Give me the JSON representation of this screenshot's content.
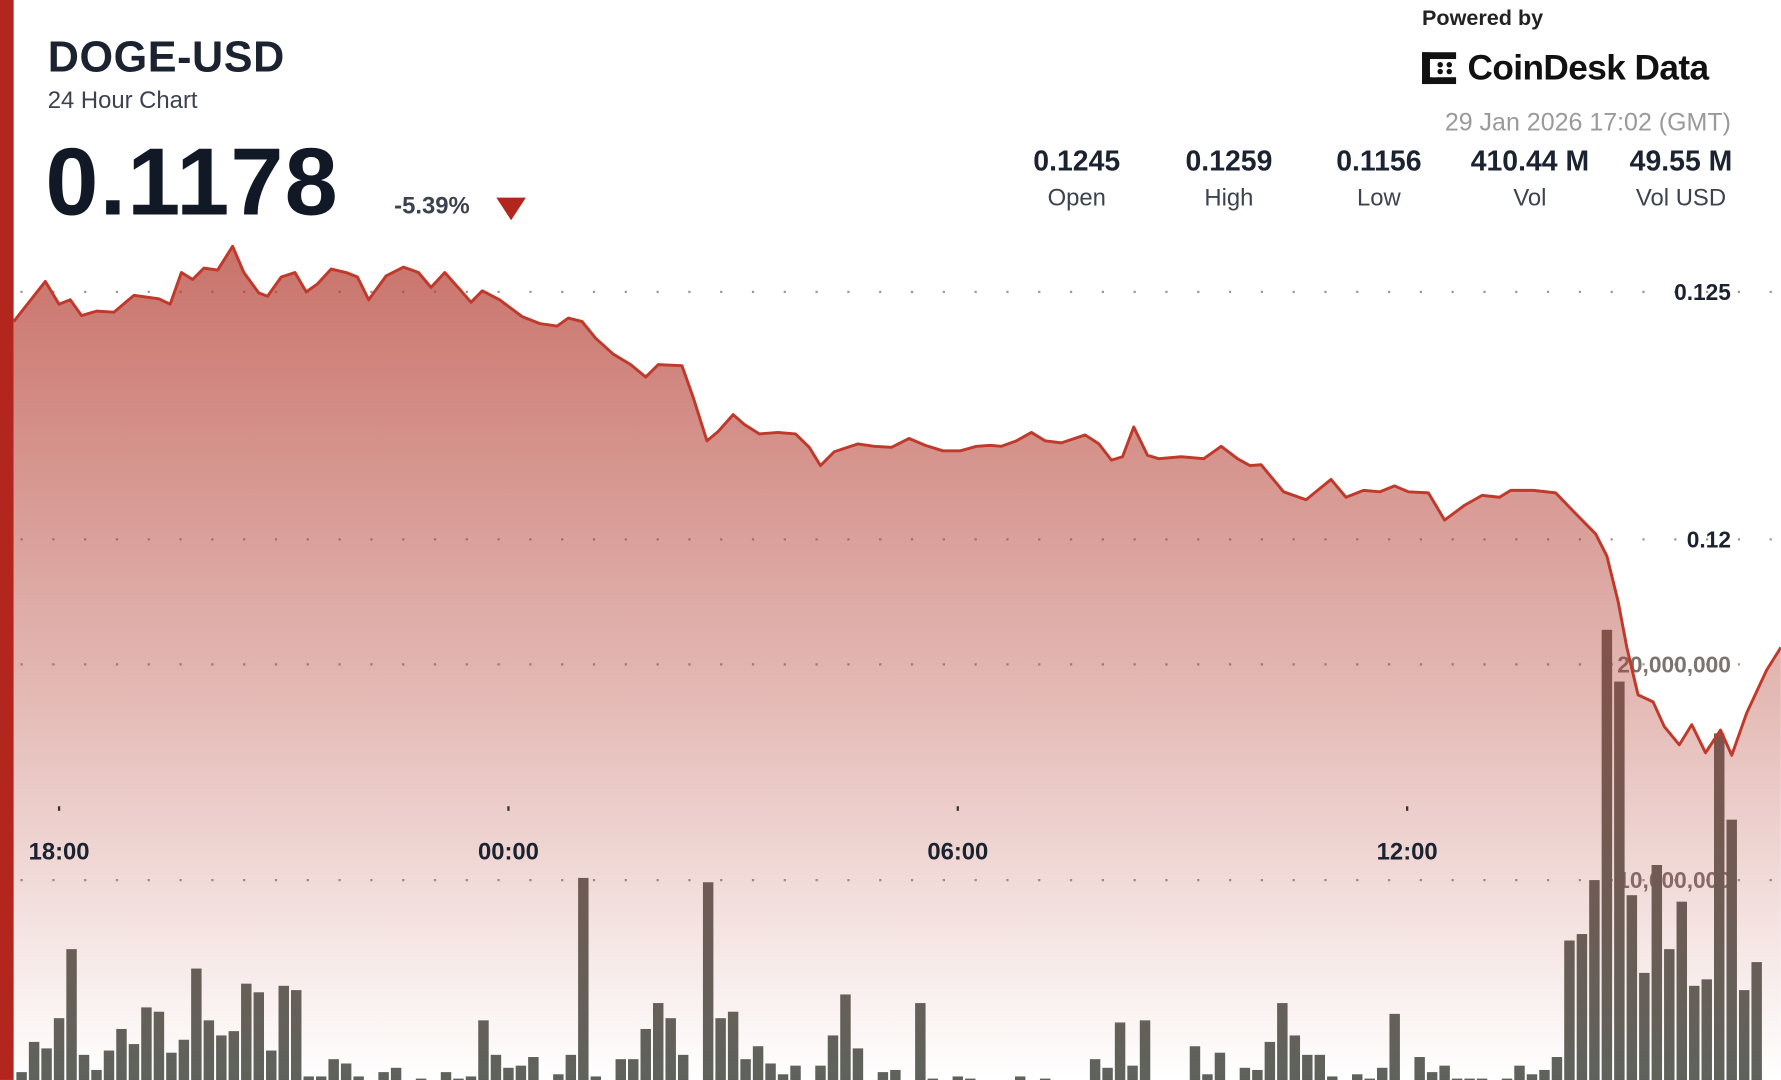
{
  "header": {
    "symbol": "DOGE-USD",
    "subtitle": "24 Hour Chart",
    "price": "0.1178",
    "change": "-5.39%",
    "change_direction": "down",
    "powered_by": "Powered by",
    "brand": "CoinDesk Data",
    "timestamp": "29 Jan 2026 17:02 (GMT)"
  },
  "stats": [
    {
      "value": "0.1245",
      "label": "Open"
    },
    {
      "value": "0.1259",
      "label": "High"
    },
    {
      "value": "0.1156",
      "label": "Low"
    },
    {
      "value": "410.44 M",
      "label": "Vol"
    },
    {
      "value": "49.55 M",
      "label": "Vol USD"
    }
  ],
  "colors": {
    "accent": "#b3261e",
    "line": "#c0392b",
    "area": "#b43c30",
    "volume_bar": "#5f625c"
  },
  "chart_data": {
    "type": "area",
    "grid": true,
    "price_axis": {
      "ticks": [
        0.125,
        0.12
      ],
      "tick_labels": [
        "0.125",
        "0.12"
      ]
    },
    "volume_axis": {
      "ticks": [
        20000000,
        10000000
      ],
      "tick_labels": [
        "20,000,000",
        "10,000,000"
      ]
    },
    "x_axis": {
      "ticks": [
        "2026-01-28T18:00",
        "2026-01-29T00:00",
        "2026-01-29T06:00",
        "2026-01-29T12:00"
      ],
      "tick_labels": [
        "18:00",
        "00:00",
        "06:00",
        "12:00"
      ]
    },
    "price_series": [
      [
        "2026-01-28T17:24",
        0.1244
      ],
      [
        "2026-01-28T17:49",
        0.12521
      ],
      [
        "2026-01-28T18:00",
        0.12475
      ],
      [
        "2026-01-28T18:09",
        0.12484
      ],
      [
        "2026-01-28T18:18",
        0.12452
      ],
      [
        "2026-01-28T18:30",
        0.12461
      ],
      [
        "2026-01-28T18:44",
        0.12459
      ],
      [
        "2026-01-28T19:00",
        0.12493
      ],
      [
        "2026-01-28T19:20",
        0.12486
      ],
      [
        "2026-01-28T19:29",
        0.12475
      ],
      [
        "2026-01-28T19:38",
        0.12539
      ],
      [
        "2026-01-28T19:47",
        0.12525
      ],
      [
        "2026-01-28T19:56",
        0.12548
      ],
      [
        "2026-01-28T20:07",
        0.12544
      ],
      [
        "2026-01-28T20:19",
        0.12592
      ],
      [
        "2026-01-28T20:28",
        0.12539
      ],
      [
        "2026-01-28T20:40",
        0.12498
      ],
      [
        "2026-01-28T20:47",
        0.12491
      ],
      [
        "2026-01-28T20:58",
        0.1253
      ],
      [
        "2026-01-28T21:09",
        0.12539
      ],
      [
        "2026-01-28T21:18",
        0.125
      ],
      [
        "2026-01-28T21:27",
        0.12516
      ],
      [
        "2026-01-28T21:38",
        0.12546
      ],
      [
        "2026-01-28T21:50",
        0.12539
      ],
      [
        "2026-01-28T21:59",
        0.1253
      ],
      [
        "2026-01-28T22:08",
        0.12484
      ],
      [
        "2026-01-28T22:22",
        0.12532
      ],
      [
        "2026-01-28T22:36",
        0.1255
      ],
      [
        "2026-01-28T22:48",
        0.12539
      ],
      [
        "2026-01-28T22:58",
        0.12509
      ],
      [
        "2026-01-28T23:09",
        0.12539
      ],
      [
        "2026-01-28T23:21",
        0.12505
      ],
      [
        "2026-01-28T23:30",
        0.12479
      ],
      [
        "2026-01-28T23:39",
        0.12502
      ],
      [
        "2026-01-28T23:53",
        0.12484
      ],
      [
        "2026-01-29T00:11",
        0.1245
      ],
      [
        "2026-01-29T00:25",
        0.12436
      ],
      [
        "2026-01-29T00:39",
        0.12431
      ],
      [
        "2026-01-29T00:48",
        0.12447
      ],
      [
        "2026-01-29T00:59",
        0.1244
      ],
      [
        "2026-01-29T01:10",
        0.12406
      ],
      [
        "2026-01-29T01:24",
        0.12374
      ],
      [
        "2026-01-29T01:38",
        0.12353
      ],
      [
        "2026-01-29T01:50",
        0.12328
      ],
      [
        "2026-01-29T02:00",
        0.12353
      ],
      [
        "2026-01-29T02:19",
        0.12351
      ],
      [
        "2026-01-29T02:28",
        0.12287
      ],
      [
        "2026-01-29T02:39",
        0.12199
      ],
      [
        "2026-01-29T02:48",
        0.12218
      ],
      [
        "2026-01-29T03:00",
        0.12252
      ],
      [
        "2026-01-29T03:09",
        0.12232
      ],
      [
        "2026-01-29T03:21",
        0.12213
      ],
      [
        "2026-01-29T03:36",
        0.12216
      ],
      [
        "2026-01-29T03:50",
        0.12213
      ],
      [
        "2026-01-29T04:01",
        0.12186
      ],
      [
        "2026-01-29T04:10",
        0.12149
      ],
      [
        "2026-01-29T04:21",
        0.12177
      ],
      [
        "2026-01-29T04:40",
        0.12193
      ],
      [
        "2026-01-29T04:53",
        0.12188
      ],
      [
        "2026-01-29T05:07",
        0.12186
      ],
      [
        "2026-01-29T05:21",
        0.12204
      ],
      [
        "2026-01-29T05:34",
        0.1219
      ],
      [
        "2026-01-29T05:48",
        0.12179
      ],
      [
        "2026-01-29T06:02",
        0.12179
      ],
      [
        "2026-01-29T06:15",
        0.12188
      ],
      [
        "2026-01-29T06:26",
        0.1219
      ],
      [
        "2026-01-29T06:35",
        0.12188
      ],
      [
        "2026-01-29T06:47",
        0.12199
      ],
      [
        "2026-01-29T06:59",
        0.12216
      ],
      [
        "2026-01-29T07:10",
        0.12199
      ],
      [
        "2026-01-29T07:23",
        0.12195
      ],
      [
        "2026-01-29T07:42",
        0.12211
      ],
      [
        "2026-01-29T07:53",
        0.12193
      ],
      [
        "2026-01-29T08:03",
        0.1216
      ],
      [
        "2026-01-29T08:12",
        0.12167
      ],
      [
        "2026-01-29T08:21",
        0.12227
      ],
      [
        "2026-01-29T08:32",
        0.1217
      ],
      [
        "2026-01-29T08:41",
        0.12163
      ],
      [
        "2026-01-29T08:59",
        0.12167
      ],
      [
        "2026-01-29T09:17",
        0.12163
      ],
      [
        "2026-01-29T09:31",
        0.12188
      ],
      [
        "2026-01-29T09:44",
        0.12163
      ],
      [
        "2026-01-29T09:54",
        0.12149
      ],
      [
        "2026-01-29T10:03",
        0.12151
      ],
      [
        "2026-01-29T10:21",
        0.12096
      ],
      [
        "2026-01-29T10:39",
        0.1208
      ],
      [
        "2026-01-29T10:59",
        0.12121
      ],
      [
        "2026-01-29T11:11",
        0.12085
      ],
      [
        "2026-01-29T11:25",
        0.12099
      ],
      [
        "2026-01-29T11:38",
        0.12096
      ],
      [
        "2026-01-29T11:50",
        0.12108
      ],
      [
        "2026-01-29T12:01",
        0.12096
      ],
      [
        "2026-01-29T12:17",
        0.12094
      ],
      [
        "2026-01-29T12:30",
        0.12039
      ],
      [
        "2026-01-29T12:46",
        0.12069
      ],
      [
        "2026-01-29T13:00",
        0.12089
      ],
      [
        "2026-01-29T13:14",
        0.12085
      ],
      [
        "2026-01-29T13:23",
        0.12099
      ],
      [
        "2026-01-29T13:41",
        0.12099
      ],
      [
        "2026-01-29T13:59",
        0.12094
      ],
      [
        "2026-01-29T14:13",
        0.12057
      ],
      [
        "2026-01-29T14:31",
        0.12011
      ],
      [
        "2026-01-29T14:40",
        0.11966
      ],
      [
        "2026-01-29T14:49",
        0.11874
      ],
      [
        "2026-01-29T14:56",
        0.11782
      ],
      [
        "2026-01-29T15:05",
        0.11686
      ],
      [
        "2026-01-29T15:17",
        0.11672
      ],
      [
        "2026-01-29T15:26",
        0.11622
      ],
      [
        "2026-01-29T15:38",
        0.11585
      ],
      [
        "2026-01-29T15:48",
        0.11626
      ],
      [
        "2026-01-29T15:59",
        0.11569
      ],
      [
        "2026-01-29T16:11",
        0.11615
      ],
      [
        "2026-01-29T16:20",
        0.11564
      ],
      [
        "2026-01-29T16:32",
        0.11649
      ],
      [
        "2026-01-29T16:48",
        0.11736
      ],
      [
        "2026-01-29T16:59",
        0.11782
      ]
    ],
    "volume_series": {
      "interval_minutes": 10,
      "first_bar": "2026-01-28T17:30",
      "values_millions": [
        1.1,
        2.5,
        2.2,
        3.6,
        6.8,
        1.9,
        1.2,
        2.1,
        3.1,
        2.4,
        4.1,
        3.9,
        2.0,
        2.6,
        5.9,
        3.5,
        2.8,
        3.0,
        5.2,
        4.8,
        2.1,
        5.1,
        4.9,
        0.9,
        0.9,
        1.7,
        1.5,
        0.9,
        0.7,
        1.1,
        1.3,
        0.6,
        0.8,
        0.6,
        1.1,
        0.8,
        0.9,
        3.5,
        1.9,
        1.3,
        1.4,
        1.8,
        0.5,
        1.0,
        1.9,
        10.1,
        0.9,
        0.4,
        1.7,
        1.7,
        3.1,
        4.3,
        3.6,
        1.9,
        0.6,
        9.9,
        3.6,
        3.9,
        1.7,
        2.3,
        1.5,
        1.0,
        1.4,
        0.4,
        1.4,
        2.8,
        4.7,
        2.2,
        0.5,
        1.1,
        1.2,
        0.5,
        4.3,
        0.8,
        0.6,
        0.9,
        0.8,
        0.2,
        0.7,
        0.2,
        0.9,
        0.6,
        0.8,
        0.2,
        0.2,
        0.5,
        1.7,
        1.3,
        3.4,
        1.4,
        3.5,
        0.7,
        0.2,
        0.2,
        2.3,
        1.0,
        2.0,
        0.2,
        1.3,
        1.2,
        2.5,
        4.3,
        2.8,
        1.9,
        1.9,
        0.9,
        0.7,
        1.0,
        0.8,
        1.3,
        3.8,
        0.7,
        1.8,
        1.1,
        1.4,
        0.8,
        0.8,
        0.8,
        0.7,
        0.8,
        1.4,
        1.0,
        1.2,
        1.8,
        7.2,
        7.5,
        10.0,
        21.6,
        19.2,
        9.3,
        5.7,
        10.7,
        6.8,
        9.0,
        5.1,
        5.4,
        16.8,
        12.8,
        4.9,
        6.2
      ]
    }
  }
}
